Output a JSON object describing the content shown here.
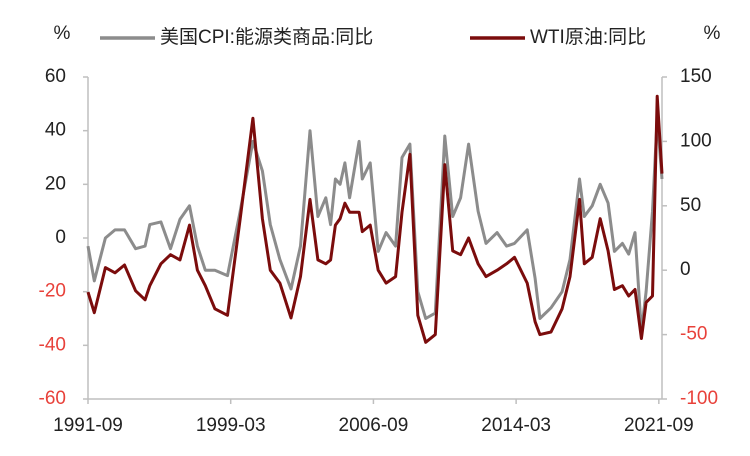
{
  "chart_data": {
    "type": "line",
    "ylabel": "%",
    "y2label": "%",
    "x": [
      "1991-09",
      "1992-01",
      "1992-08",
      "1993-02",
      "1993-08",
      "1994-03",
      "1994-09",
      "1994-12",
      "1995-07",
      "1996-01",
      "1996-07",
      "1997-01",
      "1997-06",
      "1997-11",
      "1998-05",
      "1999-01",
      "1999-09",
      "2000-05",
      "2000-11",
      "2001-04",
      "2001-10",
      "2002-05",
      "2002-11",
      "2003-05",
      "2003-10",
      "2004-03",
      "2004-06",
      "2004-09",
      "2004-12",
      "2005-03",
      "2005-06",
      "2005-12",
      "2006-02",
      "2006-07",
      "2006-12",
      "2007-05",
      "2007-11",
      "2008-03",
      "2008-08",
      "2009-01",
      "2009-06",
      "2009-12",
      "2010-06",
      "2010-11",
      "2011-04",
      "2011-09",
      "2012-03",
      "2012-08",
      "2013-03",
      "2013-09",
      "2014-02",
      "2014-10",
      "2015-03",
      "2015-06",
      "2016-01",
      "2016-08",
      "2017-01",
      "2017-07",
      "2017-10",
      "2018-03",
      "2018-08",
      "2019-01",
      "2019-05",
      "2019-10",
      "2020-02",
      "2020-06",
      "2020-10",
      "2021-01",
      "2021-05",
      "2021-08",
      "2021-11"
    ],
    "series": [
      {
        "name": "美国CPI:能源类商品:同比",
        "color": "#8c8c8c",
        "axis": "y",
        "values": [
          -3,
          -16,
          0,
          3,
          3,
          -4,
          -3,
          5,
          6,
          -4,
          7,
          12,
          -3,
          -12,
          -12,
          -14,
          10,
          36,
          25,
          5,
          -8,
          -19,
          -3,
          40,
          8,
          15,
          5,
          22,
          20,
          28,
          15,
          36,
          22,
          28,
          -5,
          2,
          -3,
          30,
          35,
          -20,
          -30,
          -28,
          38,
          8,
          15,
          35,
          10,
          -2,
          2,
          -3,
          -2,
          3,
          -15,
          -30,
          -26,
          -20,
          -8,
          22,
          8,
          12,
          20,
          13,
          -5,
          -2,
          -6,
          2,
          -35,
          -20,
          10,
          45,
          22
        ]
      },
      {
        "name": "WTI原油:同比",
        "color": "#7b0c0c",
        "axis": "y2",
        "values": [
          -17,
          -33,
          2,
          -2,
          4,
          -16,
          -23,
          -12,
          5,
          12,
          8,
          35,
          0,
          -12,
          -30,
          -35,
          40,
          118,
          40,
          0,
          -10,
          -37,
          -5,
          55,
          8,
          5,
          8,
          35,
          40,
          52,
          45,
          45,
          30,
          35,
          0,
          -10,
          -5,
          45,
          90,
          -35,
          -56,
          -50,
          82,
          15,
          12,
          25,
          5,
          -5,
          0,
          5,
          10,
          -10,
          -40,
          -50,
          -48,
          -30,
          -5,
          55,
          5,
          10,
          40,
          15,
          -15,
          -12,
          -20,
          -15,
          -53,
          -25,
          -20,
          135,
          75
        ]
      }
    ],
    "xlim": [
      "1991-09",
      "2021-11"
    ],
    "xticks": [
      "1991-09",
      "1999-03",
      "2006-09",
      "2014-03",
      "2021-09"
    ],
    "ylim": [
      -60,
      60
    ],
    "yticks": [
      -60,
      -40,
      -20,
      0,
      20,
      40,
      60
    ],
    "y2lim": [
      -100,
      150
    ],
    "y2ticks": [
      -100,
      -50,
      0,
      50,
      100,
      150
    ],
    "negative_tick_color": "#e8413a",
    "grid": false,
    "legend": "top"
  }
}
